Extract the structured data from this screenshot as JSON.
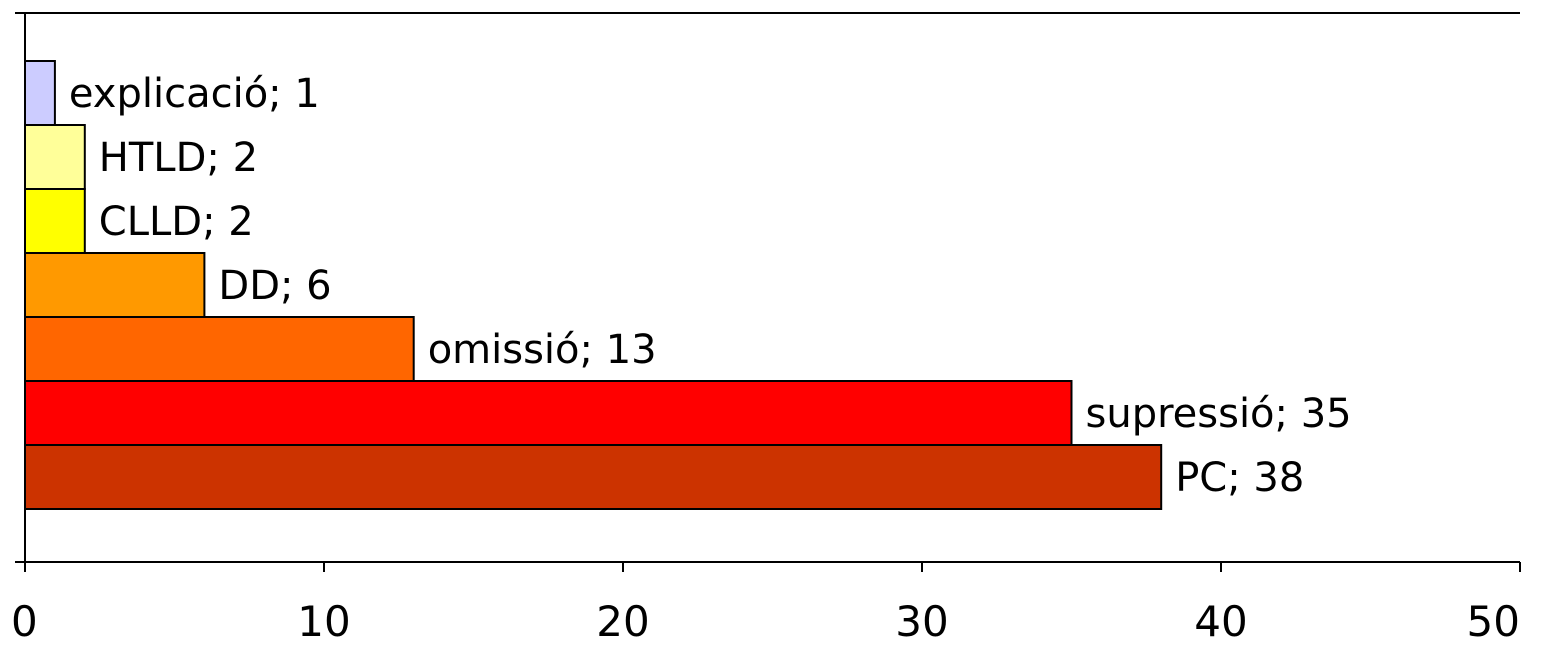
{
  "chart_data": {
    "type": "bar",
    "orientation": "horizontal",
    "title": "",
    "xlabel": "",
    "ylabel": "",
    "xlim": [
      0,
      50
    ],
    "x_ticks": [
      0,
      10,
      20,
      30,
      40,
      50
    ],
    "grid": false,
    "legend": "none",
    "bars": [
      {
        "category": "explicació",
        "value": 1,
        "label": "explicació; 1",
        "color": "#ccccff"
      },
      {
        "category": "HTLD",
        "value": 2,
        "label": "HTLD; 2",
        "color": "#ffff99"
      },
      {
        "category": "CLLD",
        "value": 2,
        "label": "CLLD; 2",
        "color": "#ffff00"
      },
      {
        "category": "DD",
        "value": 6,
        "label": "DD; 6",
        "color": "#ff9900"
      },
      {
        "category": "omissió",
        "value": 13,
        "label": "omissió; 13",
        "color": "#ff6600"
      },
      {
        "category": "supressió",
        "value": 35,
        "label": "supressió; 35",
        "color": "#ff0000"
      },
      {
        "category": "PC",
        "value": 38,
        "label": "PC; 38",
        "color": "#cc3300"
      }
    ]
  }
}
